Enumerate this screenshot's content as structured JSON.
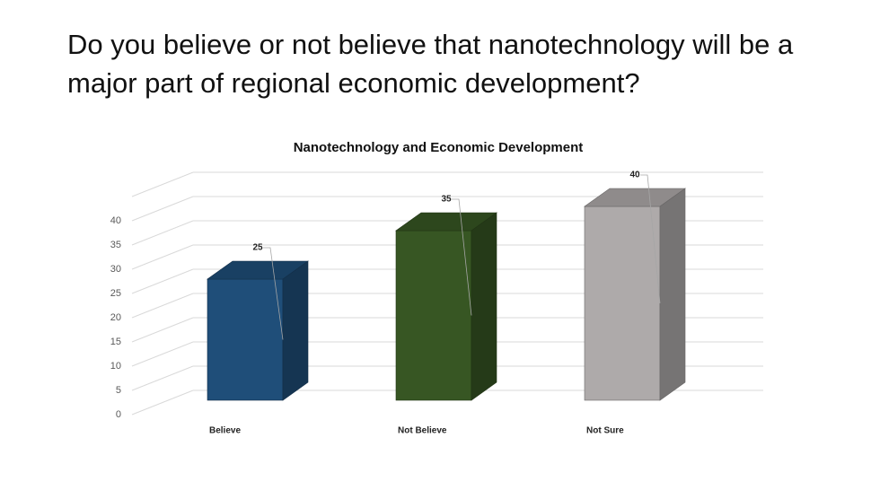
{
  "question": "Do you believe or not believe that nanotechnology will be a major part of regional economic development?",
  "chart_data": {
    "type": "bar3d",
    "title": "Nanotechnology and Economic Development",
    "categories": [
      "Believe",
      "Not Believe",
      "Not Sure"
    ],
    "values": [
      25,
      35,
      40
    ],
    "colors": [
      "#1f4e79",
      "#375623",
      "#aeaaaa"
    ],
    "ylim": [
      0,
      45
    ],
    "yticks": [
      0,
      5,
      10,
      15,
      20,
      25,
      30,
      35,
      40
    ],
    "grid": true
  }
}
